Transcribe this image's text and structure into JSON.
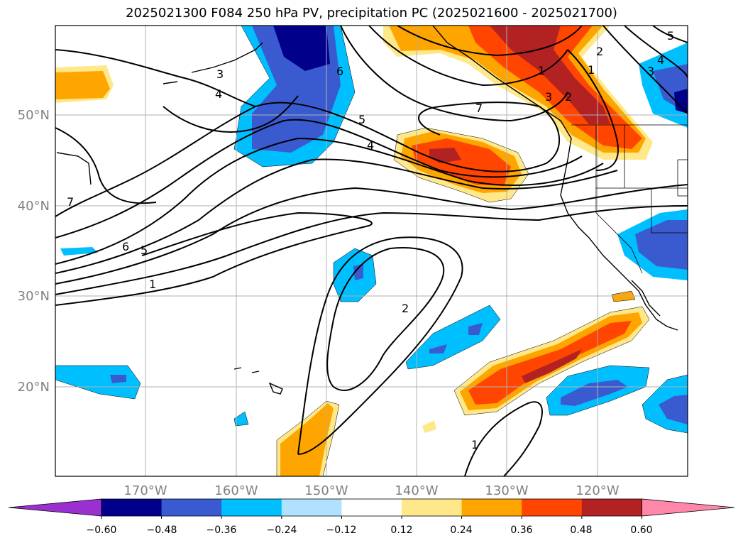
{
  "title": "2025021300 F084 250 hPa PV, precipitation PC (2025021600 - 2025021700)",
  "lat_labels": [
    "50°N",
    "40°N",
    "30°N",
    "20°N"
  ],
  "lon_labels": [
    "170°W",
    "160°W",
    "150°W",
    "140°W",
    "130°W",
    "120°W"
  ],
  "contour_labels": [
    "1",
    "2",
    "3",
    "4",
    "5",
    "6",
    "7",
    "1",
    "2",
    "3",
    "4",
    "5",
    "6",
    "7",
    "1",
    "2",
    "3",
    "4",
    "5",
    "1",
    "2",
    "3"
  ],
  "colorbar": {
    "tick_labels": [
      "−0.60",
      "−0.48",
      "−0.36",
      "−0.24",
      "−0.12",
      "0.12",
      "0.24",
      "0.36",
      "0.48",
      "0.60"
    ],
    "colors": [
      "#9b30d0",
      "#00008b",
      "#3a5bd0",
      "#00bfff",
      "#b0e2ff",
      "#ffffff",
      "#ffe88a",
      "#ffa500",
      "#ff4500",
      "#b22222",
      "#ff88aa"
    ]
  }
}
